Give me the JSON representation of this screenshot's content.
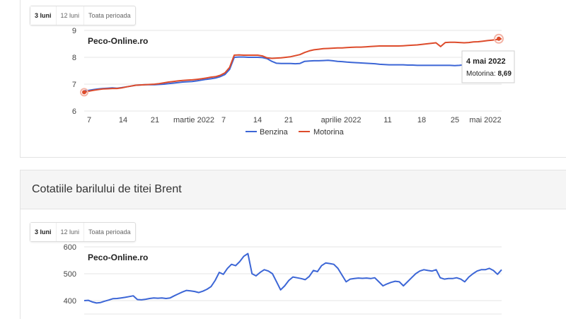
{
  "ranges": [
    "3 luni",
    "12 luni",
    "Toata perioada"
  ],
  "active_range": "3 luni",
  "section2": {
    "title": "Cotatiile barilului de titei Brent"
  },
  "chart_data": [
    {
      "type": "line",
      "watermark": "Peco-Online.ro",
      "ylim": [
        6,
        9
      ],
      "yticks": [
        "6",
        "7",
        "8",
        "9"
      ],
      "xticks": [
        "7",
        "14",
        "21",
        "martie 2022",
        "7",
        "14",
        "21",
        "aprilie 2022",
        "11",
        "18",
        "25",
        "mai 2022"
      ],
      "grid": true,
      "legend_position": "bottom",
      "series": [
        {
          "name": "Benzina",
          "color": "#3c66d6",
          "values": [
            6.75,
            6.77,
            6.8,
            6.82,
            6.84,
            6.85,
            6.86,
            6.85,
            6.87,
            6.9,
            6.93,
            6.96,
            6.97,
            6.98,
            6.98,
            6.98,
            6.99,
            7.0,
            7.02,
            7.04,
            7.06,
            7.08,
            7.09,
            7.1,
            7.12,
            7.15,
            7.18,
            7.2,
            7.23,
            7.28,
            7.36,
            7.55,
            8.0,
            8.01,
            8.01,
            8.0,
            8.0,
            8.0,
            7.99,
            7.95,
            7.85,
            7.78,
            7.77,
            7.77,
            7.77,
            7.76,
            7.77,
            7.85,
            7.86,
            7.87,
            7.87,
            7.88,
            7.89,
            7.87,
            7.85,
            7.84,
            7.82,
            7.81,
            7.8,
            7.79,
            7.78,
            7.77,
            7.76,
            7.74,
            7.73,
            7.72,
            7.72,
            7.72,
            7.72,
            7.71,
            7.71,
            7.7,
            7.7,
            7.7,
            7.7,
            7.7,
            7.7,
            7.7,
            7.7,
            7.69,
            7.7,
            7.72,
            7.73,
            7.72,
            7.72,
            7.72,
            7.71,
            7.7,
            7.7,
            7.7
          ]
        },
        {
          "name": "Motorina",
          "color": "#dd4b2b",
          "values": [
            6.7,
            6.74,
            6.77,
            6.8,
            6.82,
            6.83,
            6.84,
            6.84,
            6.86,
            6.9,
            6.93,
            6.96,
            6.97,
            6.98,
            6.99,
            7.0,
            7.02,
            7.05,
            7.08,
            7.1,
            7.12,
            7.14,
            7.15,
            7.16,
            7.18,
            7.2,
            7.23,
            7.26,
            7.28,
            7.33,
            7.42,
            7.62,
            8.08,
            8.09,
            8.08,
            8.08,
            8.08,
            8.08,
            8.05,
            7.98,
            7.96,
            7.97,
            7.98,
            8.0,
            8.02,
            8.06,
            8.1,
            8.18,
            8.24,
            8.28,
            8.3,
            8.32,
            8.33,
            8.34,
            8.35,
            8.35,
            8.36,
            8.37,
            8.38,
            8.38,
            8.39,
            8.4,
            8.41,
            8.42,
            8.42,
            8.42,
            8.42,
            8.42,
            8.43,
            8.44,
            8.45,
            8.46,
            8.48,
            8.5,
            8.52,
            8.54,
            8.4,
            8.55,
            8.56,
            8.56,
            8.55,
            8.54,
            8.55,
            8.57,
            8.58,
            8.6,
            8.62,
            8.64,
            8.66,
            8.69
          ]
        }
      ],
      "tooltip": {
        "title": "4 mai 2022",
        "label": "Motorina",
        "value": "8,69"
      }
    },
    {
      "type": "line",
      "watermark": "Peco-Online.ro",
      "ylim": [
        360,
        600
      ],
      "yticks": [
        "400",
        "500",
        "600"
      ],
      "grid": true,
      "series": [
        {
          "name": "",
          "color": "#3c66d6",
          "values": [
            400,
            401,
            395,
            391,
            393,
            398,
            402,
            407,
            408,
            410,
            412,
            415,
            418,
            404,
            403,
            405,
            408,
            410,
            409,
            410,
            408,
            410,
            418,
            425,
            432,
            438,
            436,
            434,
            430,
            435,
            442,
            452,
            475,
            505,
            498,
            520,
            535,
            530,
            545,
            565,
            575,
            500,
            492,
            505,
            515,
            510,
            500,
            470,
            440,
            455,
            475,
            488,
            485,
            482,
            478,
            490,
            512,
            508,
            530,
            540,
            538,
            535,
            520,
            495,
            470,
            480,
            482,
            484,
            483,
            484,
            482,
            485,
            470,
            455,
            462,
            468,
            472,
            470,
            455,
            470,
            485,
            500,
            510,
            515,
            512,
            510,
            515,
            485,
            480,
            482,
            482,
            485,
            480,
            470,
            488,
            500,
            510,
            515,
            515,
            520,
            512,
            498,
            515
          ]
        }
      ]
    }
  ]
}
